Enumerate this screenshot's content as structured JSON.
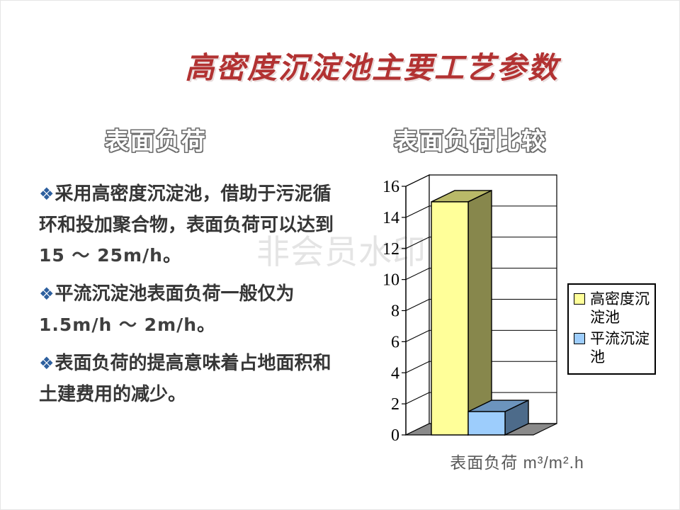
{
  "title": {
    "text": "高密度沉淀池主要工艺参数",
    "color": "#b23232"
  },
  "sections": {
    "left_heading": "表面负荷"
  },
  "bullets": {
    "glyph": "❖",
    "items": [
      {
        "lead": "采用高密度沉淀池，借助于污泥循环和投加聚合物，表面负荷可以达到",
        "strong": "15 ～ 25m/h",
        "tail": "。"
      },
      {
        "lead": "平流沉淀池表面负荷一般仅为",
        "strong": "1.5m/h ～ 2m/h",
        "tail": "。"
      },
      {
        "lead": "表面负荷的提高意味着占地面积和土建费用的减少。",
        "strong": "",
        "tail": ""
      }
    ]
  },
  "watermark": {
    "text": "非会员水印",
    "color": "#e4e4e4"
  },
  "chart_data": {
    "type": "bar",
    "style": "3d",
    "title": "表面负荷比较",
    "categories": [
      "表面负荷"
    ],
    "series": [
      {
        "name": "高密度沉淀池",
        "values": [
          15
        ],
        "color": "#ffff99",
        "color_top": "#b9b968",
        "color_side": "#87874c"
      },
      {
        "name": "平流沉淀池",
        "values": [
          1.5
        ],
        "color": "#9dcdfc",
        "color_top": "#6c94bd",
        "color_side": "#4d6b8a"
      }
    ],
    "ylim": [
      0,
      16
    ],
    "ytick_step": 2,
    "xlabel": "表面负荷  m³/m².h",
    "legend_position": "right",
    "grid": true,
    "wall_color": "#ffffff",
    "floor_color": "#8a8a8a",
    "axis_color": "#000000"
  }
}
